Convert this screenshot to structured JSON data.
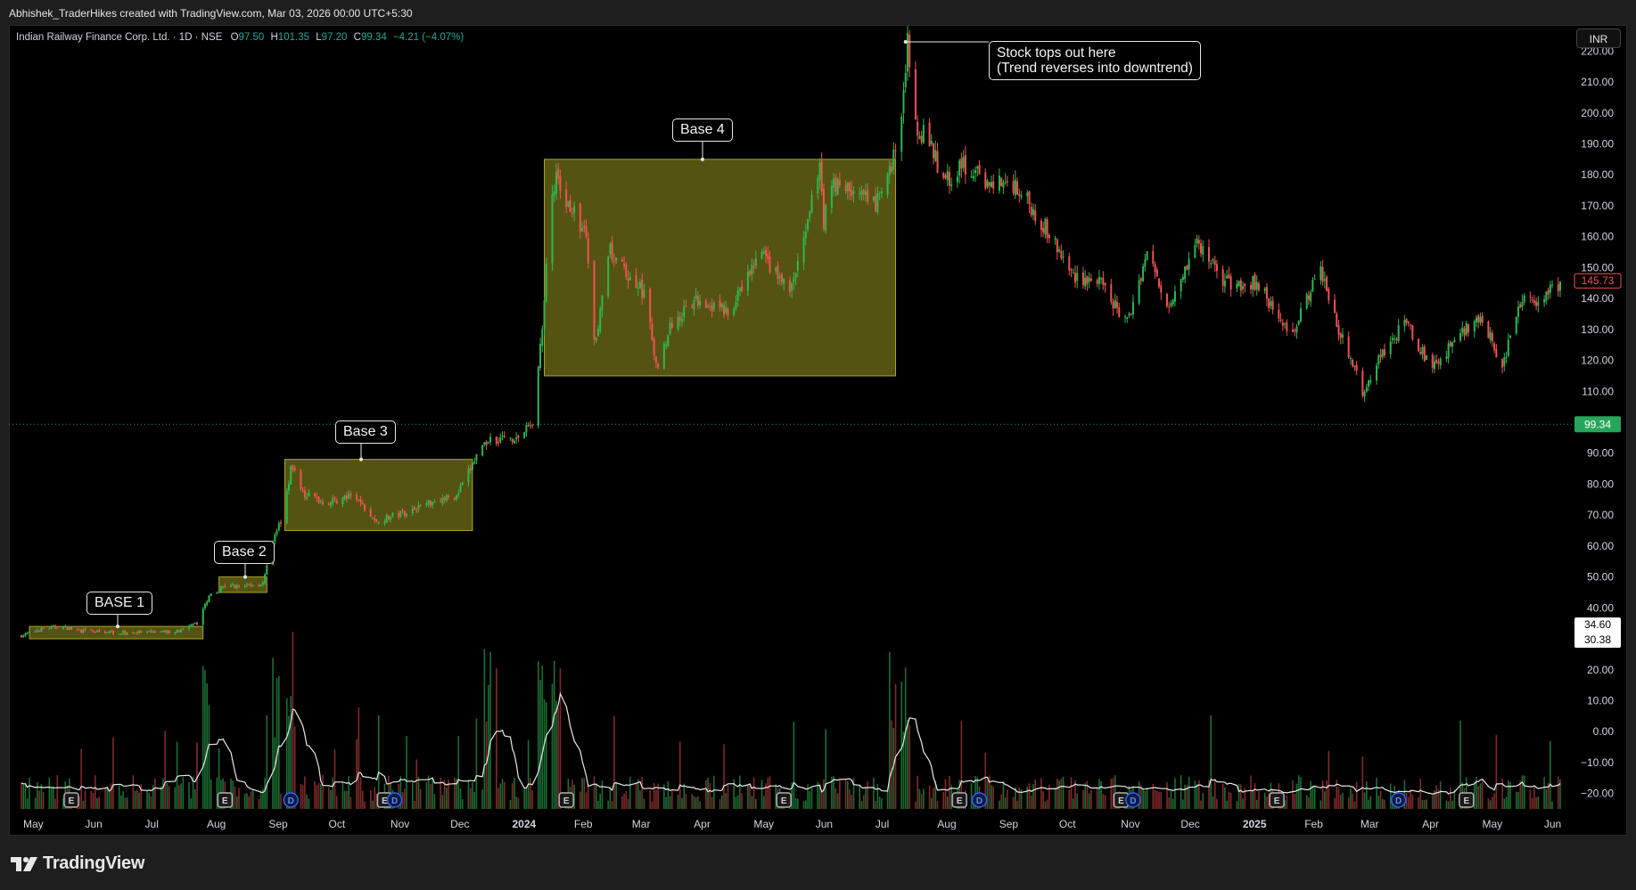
{
  "header": {
    "credit": "Abhishek_TraderHikes created with TradingView.com, Mar 03, 2026 00:00 UTC+5:30"
  },
  "legend": {
    "symbol": "Indian Railway Finance Corp. Ltd. · 1D · NSE",
    "open_label": "O",
    "open": "97.50",
    "high_label": "H",
    "high": "101.35",
    "low_label": "L",
    "low": "97.20",
    "close_label": "C",
    "close": "99.34",
    "change": "−4.21 (−4.07%)"
  },
  "currency_button": "INR",
  "footer": {
    "brand": "TradingView"
  },
  "annotations": {
    "base1": "BASE 1",
    "base2": "Base 2",
    "base3": "Base 3",
    "base4": "Base 4",
    "top_line1": "Stock tops out here",
    "top_line2": "(Trend reverses into downtrend)"
  },
  "colors": {
    "up": "#26a69a",
    "candle_up": "#2db84f",
    "candle_down": "#ef5350",
    "base_box": "#8d8a1e",
    "background": "#000000",
    "last_price_tag": "#26a65b",
    "prev_close_tag": "#ef5350"
  },
  "chart_data": {
    "type": "candlestick",
    "symbol": "IRFC",
    "exchange": "NSE",
    "interval": "1D",
    "currency": "INR",
    "ylim": [
      -25,
      225
    ],
    "y_ticks": [
      220,
      210,
      200,
      190,
      180,
      170,
      160,
      150,
      140,
      130,
      120,
      110,
      90,
      80,
      70,
      60,
      50,
      40,
      20,
      10,
      0,
      -10,
      -20
    ],
    "y_tick_labels": [
      "220.00",
      "210.00",
      "200.00",
      "190.00",
      "180.00",
      "170.00",
      "160.00",
      "150.00",
      "140.00",
      "130.00",
      "120.00",
      "110.00",
      "90.00",
      "80.00",
      "70.00",
      "60.00",
      "50.00",
      "40.00",
      "20.00",
      "10.00",
      "0.00",
      "−10.00",
      "−20.00"
    ],
    "x_start": "2023-05-01",
    "x_end": "2025-06-10",
    "x_tick_labels": [
      {
        "label": "May",
        "date": "2023-05-01",
        "bold": false
      },
      {
        "label": "Jun",
        "date": "2023-06-01",
        "bold": false
      },
      {
        "label": "Jul",
        "date": "2023-07-01",
        "bold": false
      },
      {
        "label": "Aug",
        "date": "2023-08-01",
        "bold": false
      },
      {
        "label": "Sep",
        "date": "2023-09-01",
        "bold": false
      },
      {
        "label": "Oct",
        "date": "2023-10-01",
        "bold": false
      },
      {
        "label": "Nov",
        "date": "2023-11-01",
        "bold": false
      },
      {
        "label": "Dec",
        "date": "2023-12-01",
        "bold": false
      },
      {
        "label": "2024",
        "date": "2024-01-01",
        "bold": true
      },
      {
        "label": "Feb",
        "date": "2024-02-01",
        "bold": false
      },
      {
        "label": "Mar",
        "date": "2024-03-01",
        "bold": false
      },
      {
        "label": "Apr",
        "date": "2024-04-01",
        "bold": false
      },
      {
        "label": "May",
        "date": "2024-05-01",
        "bold": false
      },
      {
        "label": "Jun",
        "date": "2024-06-01",
        "bold": false
      },
      {
        "label": "Jul",
        "date": "2024-07-01",
        "bold": false
      },
      {
        "label": "Aug",
        "date": "2024-08-01",
        "bold": false
      },
      {
        "label": "Sep",
        "date": "2024-09-01",
        "bold": false
      },
      {
        "label": "Oct",
        "date": "2024-10-01",
        "bold": false
      },
      {
        "label": "Nov",
        "date": "2024-11-01",
        "bold": false
      },
      {
        "label": "Dec",
        "date": "2024-12-01",
        "bold": false
      },
      {
        "label": "2025",
        "date": "2025-01-01",
        "bold": true
      },
      {
        "label": "Feb",
        "date": "2025-02-01",
        "bold": false
      },
      {
        "label": "Mar",
        "date": "2025-03-01",
        "bold": false
      },
      {
        "label": "Apr",
        "date": "2025-04-01",
        "bold": false
      },
      {
        "label": "May",
        "date": "2025-05-01",
        "bold": false
      },
      {
        "label": "Jun",
        "date": "2025-06-01",
        "bold": false
      }
    ],
    "price_path": [
      [
        "2023-05-01",
        31
      ],
      [
        "2023-05-10",
        33
      ],
      [
        "2023-05-20",
        34
      ],
      [
        "2023-06-01",
        32.5
      ],
      [
        "2023-06-20",
        32
      ],
      [
        "2023-07-05",
        32
      ],
      [
        "2023-07-20",
        32.5
      ],
      [
        "2023-07-28",
        35
      ],
      [
        "2023-08-03",
        44
      ],
      [
        "2023-08-10",
        47
      ],
      [
        "2023-08-20",
        47
      ],
      [
        "2023-08-30",
        48
      ],
      [
        "2023-09-05",
        63
      ],
      [
        "2023-09-10",
        72
      ],
      [
        "2023-09-13",
        86
      ],
      [
        "2023-09-20",
        77
      ],
      [
        "2023-09-30",
        74
      ],
      [
        "2023-10-15",
        76
      ],
      [
        "2023-10-25",
        68
      ],
      [
        "2023-11-05",
        70
      ],
      [
        "2023-11-25",
        75
      ],
      [
        "2023-12-05",
        76
      ],
      [
        "2023-12-12",
        85
      ],
      [
        "2023-12-18",
        93
      ],
      [
        "2023-12-26",
        95
      ],
      [
        "2024-01-05",
        95
      ],
      [
        "2024-01-12",
        100
      ],
      [
        "2024-01-17",
        130
      ],
      [
        "2024-01-20",
        165
      ],
      [
        "2024-01-24",
        178
      ],
      [
        "2024-01-31",
        170
      ],
      [
        "2024-02-08",
        160
      ],
      [
        "2024-02-12",
        125
      ],
      [
        "2024-02-20",
        155
      ],
      [
        "2024-02-28",
        148
      ],
      [
        "2024-03-08",
        142
      ],
      [
        "2024-03-14",
        118
      ],
      [
        "2024-03-22",
        132
      ],
      [
        "2024-04-05",
        140
      ],
      [
        "2024-04-20",
        135
      ],
      [
        "2024-05-05",
        155
      ],
      [
        "2024-05-20",
        142
      ],
      [
        "2024-05-28",
        160
      ],
      [
        "2024-06-04",
        185
      ],
      [
        "2024-06-06",
        165
      ],
      [
        "2024-06-10",
        178
      ],
      [
        "2024-06-20",
        175
      ],
      [
        "2024-07-02",
        170
      ],
      [
        "2024-07-10",
        182
      ],
      [
        "2024-07-15",
        200
      ],
      [
        "2024-07-18",
        222
      ],
      [
        "2024-07-23",
        195
      ],
      [
        "2024-07-28",
        192
      ],
      [
        "2024-08-05",
        178
      ],
      [
        "2024-08-15",
        183
      ],
      [
        "2024-08-25",
        178
      ],
      [
        "2024-09-10",
        177
      ],
      [
        "2024-09-25",
        163
      ],
      [
        "2024-10-08",
        148
      ],
      [
        "2024-10-22",
        145
      ],
      [
        "2024-11-05",
        132
      ],
      [
        "2024-11-15",
        155
      ],
      [
        "2024-11-25",
        138
      ],
      [
        "2024-12-10",
        158
      ],
      [
        "2024-12-25",
        145
      ],
      [
        "2025-01-10",
        145
      ],
      [
        "2025-01-25",
        128
      ],
      [
        "2025-02-05",
        142
      ],
      [
        "2025-02-10",
        150
      ],
      [
        "2025-02-20",
        128
      ],
      [
        "2025-03-03",
        110
      ],
      [
        "2025-03-15",
        125
      ],
      [
        "2025-03-25",
        132
      ],
      [
        "2025-04-07",
        117
      ],
      [
        "2025-04-20",
        128
      ],
      [
        "2025-05-01",
        135
      ],
      [
        "2025-05-12",
        118
      ],
      [
        "2025-05-22",
        140
      ],
      [
        "2025-06-01",
        140
      ],
      [
        "2025-06-10",
        145
      ]
    ],
    "bases": [
      {
        "label": "BASE 1",
        "start": "2023-05-05",
        "end": "2023-07-31",
        "high": 34,
        "low": 30
      },
      {
        "label": "Base 2",
        "start": "2023-08-08",
        "end": "2023-09-01",
        "high": 50,
        "low": 45
      },
      {
        "label": "Base 3",
        "start": "2023-09-10",
        "end": "2023-12-13",
        "high": 88,
        "low": 65
      },
      {
        "label": "Base 4",
        "start": "2024-01-18",
        "end": "2024-07-12",
        "high": 185,
        "low": 115
      }
    ],
    "top": {
      "date": "2024-07-17",
      "price": 223
    },
    "last_price": 99.34,
    "prev_close_tag": 145.73,
    "range_tags": [
      34.6,
      30.38
    ],
    "events": [
      {
        "type": "E",
        "date": "2023-05-26"
      },
      {
        "type": "E",
        "date": "2023-08-11"
      },
      {
        "type": "D",
        "date": "2023-09-13"
      },
      {
        "type": "E",
        "date": "2023-10-30"
      },
      {
        "type": "D",
        "date": "2023-11-04"
      },
      {
        "type": "E",
        "date": "2024-01-29"
      },
      {
        "type": "E",
        "date": "2024-05-17"
      },
      {
        "type": "E",
        "date": "2024-08-13"
      },
      {
        "type": "D",
        "date": "2024-08-23"
      },
      {
        "type": "E",
        "date": "2024-11-02"
      },
      {
        "type": "D",
        "date": "2024-11-08"
      },
      {
        "type": "E",
        "date": "2025-01-19"
      },
      {
        "type": "D",
        "date": "2025-03-21"
      },
      {
        "type": "E",
        "date": "2025-04-24"
      }
    ],
    "volume_spikes": [
      "2023-07-31",
      "2023-09-04",
      "2023-09-13",
      "2023-12-22",
      "2024-01-17",
      "2024-01-24",
      "2024-07-12",
      "2024-07-17"
    ]
  }
}
